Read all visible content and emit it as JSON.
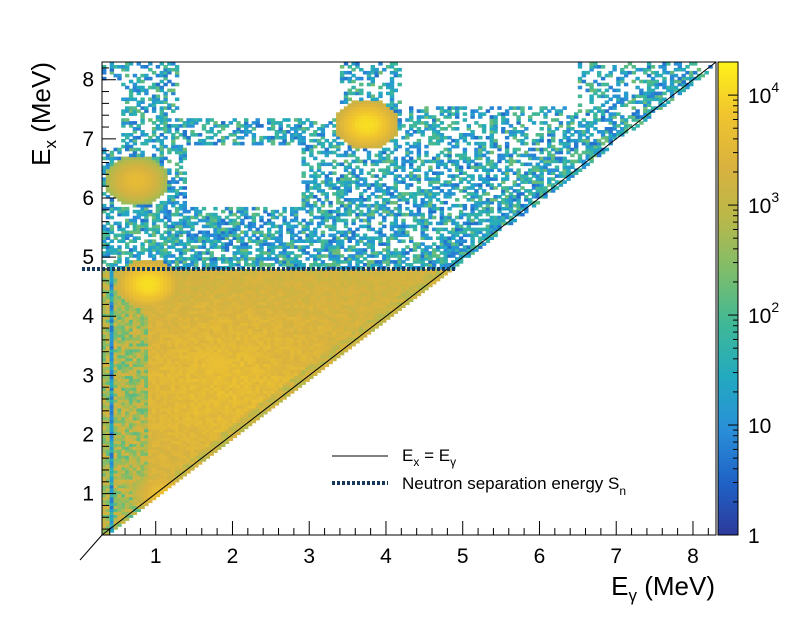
{
  "chart_data": {
    "type": "heatmap",
    "xlabel": "E",
    "xlabel_sub": "γ",
    "xlabel_unit": " (MeV)",
    "ylabel": "E",
    "ylabel_sub": "x",
    "ylabel_unit": " (MeV)",
    "xlim": [
      0.3,
      8.3
    ],
    "ylim": [
      0.3,
      8.3
    ],
    "x_ticks": [
      1,
      2,
      3,
      4,
      5,
      6,
      7,
      8
    ],
    "y_ticks": [
      1,
      2,
      3,
      4,
      5,
      6,
      7,
      8
    ],
    "x_tick_labels": [
      "1",
      "2",
      "3",
      "4",
      "5",
      "6",
      "7",
      "8"
    ],
    "y_tick_labels": [
      "1",
      "2",
      "3",
      "4",
      "5",
      "6",
      "7",
      "8"
    ],
    "color_scale": {
      "type": "log",
      "min": 1,
      "max": 20000,
      "tick_labels": [
        {
          "value": 1,
          "base": "1",
          "exp": ""
        },
        {
          "value": 10,
          "base": "10",
          "exp": ""
        },
        {
          "value": 100,
          "base": "10",
          "exp": "2"
        },
        {
          "value": 1000,
          "base": "10",
          "exp": "3"
        },
        {
          "value": 10000,
          "base": "10",
          "exp": "4"
        }
      ],
      "colors": [
        "#2d3a9b",
        "#1f62c6",
        "#2a8fd8",
        "#23a9c0",
        "#3fb897",
        "#7cbd6c",
        "#b8b84a",
        "#d9b23f",
        "#f0c42e",
        "#fff21a"
      ]
    },
    "lines": [
      {
        "name_main": "E",
        "name_sub1": "x",
        "name_mid": " = E",
        "name_sub2": "γ",
        "style": "solid",
        "color": "#000000",
        "x": [
          0.3,
          8.3
        ],
        "y": [
          0.3,
          8.3
        ]
      },
      {
        "name_main": "Neutron separation energy S",
        "name_sub1": "n",
        "name_mid": "",
        "name_sub2": "",
        "style": "dotted",
        "color": "#173a5c",
        "y_value": 4.8,
        "x": [
          0.3,
          4.9
        ]
      }
    ],
    "hot_spots": [
      {
        "x": 3.75,
        "y": 7.25,
        "level": 4.1
      },
      {
        "x": 0.75,
        "y": 6.3,
        "level": 3.6
      },
      {
        "x": 1.8,
        "y": 3.2,
        "level": 3.7
      },
      {
        "x": 0.9,
        "y": 4.55,
        "level": 4.1
      },
      {
        "x": 1.1,
        "y": 1.0,
        "level": 3.7
      }
    ],
    "legend_position": "bottom-right"
  }
}
